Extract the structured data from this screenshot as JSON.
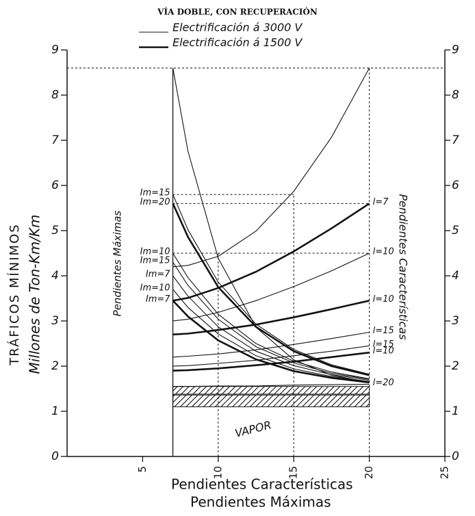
{
  "chart_data": {
    "type": "line",
    "title": "VÍA DOBLE, CON RECUPERACIÓN",
    "ylabel": [
      "TRÁFICOS MÍNIMOS",
      "Millones de Ton-Km/Km"
    ],
    "xlabel": [
      "Pendientes Características",
      "Pendientes Máximas"
    ],
    "inner_labels": [
      "Pendientes Máximas",
      "Pendientes Características"
    ],
    "annotation": "VAPOR",
    "legend": [
      {
        "label": "Electrificación á 3000 V",
        "style": "thin"
      },
      {
        "label": "Electrificación á 1500 V",
        "style": "thick"
      }
    ],
    "color": "#111111",
    "xlim": [
      0,
      25
    ],
    "xticks": [
      5,
      10,
      15,
      20,
      25
    ],
    "ylim": [
      0,
      9
    ],
    "yticks": [
      0,
      1,
      2,
      3,
      4,
      5,
      6,
      7,
      8,
      9
    ],
    "x": [
      7,
      8,
      10,
      12.5,
      15,
      17.5,
      20
    ],
    "series": [
      {
        "style": "thin",
        "values": [
          8.6,
          6.76,
          4.39,
          2.86,
          2.14,
          1.8,
          1.64
        ]
      },
      {
        "style": "thin",
        "label": "Im=15",
        "values": [
          5.8,
          5.02,
          3.86,
          2.93,
          2.37,
          2.03,
          1.82
        ]
      },
      {
        "style": "thick",
        "label": "Im=20",
        "values": [
          5.6,
          4.86,
          3.75,
          2.87,
          2.33,
          2.0,
          1.8
        ]
      },
      {
        "style": "thin",
        "label": "Im=10",
        "values": [
          4.5,
          3.96,
          3.15,
          2.5,
          2.11,
          1.87,
          1.72
        ]
      },
      {
        "style": "thin",
        "label": "Im=15",
        "values": [
          4.3,
          3.79,
          3.04,
          2.43,
          2.07,
          1.84,
          1.71
        ]
      },
      {
        "style": "thin",
        "label": "Im=7",
        "values": [
          4.0,
          3.55,
          2.87,
          2.33,
          2.01,
          1.81,
          1.69
        ]
      },
      {
        "style": "thin",
        "label": "Im=10",
        "values": [
          3.7,
          3.3,
          2.71,
          2.23,
          1.94,
          1.77,
          1.66
        ]
      },
      {
        "style": "thick",
        "label": "Im=7",
        "values": [
          3.45,
          3.1,
          2.57,
          2.15,
          1.89,
          1.74,
          1.64
        ]
      },
      {
        "style": "thin",
        "values": [
          4.2,
          4.23,
          4.43,
          4.99,
          5.87,
          7.07,
          8.6
        ]
      },
      {
        "style": "thick",
        "label": "l=7",
        "values": [
          3.45,
          3.51,
          3.73,
          4.09,
          4.54,
          5.05,
          5.6
        ]
      },
      {
        "style": "thin",
        "label": "l=10",
        "values": [
          3.0,
          3.04,
          3.19,
          3.45,
          3.76,
          4.11,
          4.5
        ]
      },
      {
        "style": "thick",
        "label": "l=10",
        "values": [
          2.7,
          2.72,
          2.8,
          2.92,
          3.08,
          3.26,
          3.45
        ]
      },
      {
        "style": "thin",
        "label": "l=15",
        "values": [
          2.2,
          2.22,
          2.27,
          2.36,
          2.48,
          2.61,
          2.75
        ]
      },
      {
        "style": "thin",
        "label": "l=15",
        "values": [
          2.0,
          2.01,
          2.06,
          2.13,
          2.23,
          2.33,
          2.45
        ]
      },
      {
        "style": "thick",
        "label": "l=10",
        "values": [
          1.9,
          1.91,
          1.95,
          2.02,
          2.1,
          2.2,
          2.3
        ]
      },
      {
        "style": "thin",
        "label": "l=20",
        "values": [
          1.55,
          1.55,
          1.56,
          1.56,
          1.58,
          1.59,
          1.6
        ]
      }
    ],
    "bands": [
      {
        "xlim": [
          7,
          20
        ],
        "ylim": [
          1.38,
          1.55
        ]
      },
      {
        "xlim": [
          7,
          20
        ],
        "ylim": [
          1.1,
          1.36
        ]
      }
    ],
    "guides": [
      {
        "x": [
          0,
          25
        ],
        "y": [
          8.6,
          8.6
        ]
      },
      {
        "x": [
          7,
          15
        ],
        "y": [
          5.8,
          5.8
        ]
      },
      {
        "x": [
          7,
          20
        ],
        "y": [
          5.6,
          5.6
        ]
      },
      {
        "x": [
          7,
          20
        ],
        "y": [
          4.5,
          4.5
        ]
      },
      {
        "x": [
          7,
          7.6
        ],
        "y": [
          2.7,
          2.7
        ]
      },
      {
        "x": [
          10,
          10
        ],
        "y": [
          0,
          4.5
        ]
      },
      {
        "x": [
          15,
          15
        ],
        "y": [
          0,
          5.8
        ]
      },
      {
        "x": [
          20,
          20
        ],
        "y": [
          0,
          8.6
        ]
      }
    ],
    "frame": {
      "x": [
        7,
        7
      ],
      "y": [
        0,
        8.6
      ]
    }
  }
}
